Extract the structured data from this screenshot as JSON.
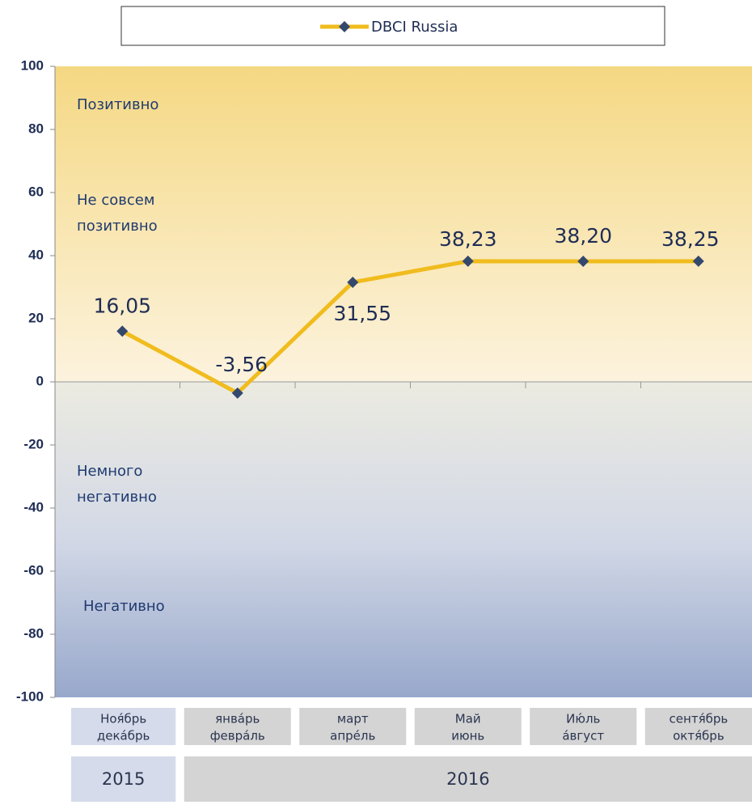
{
  "chart_data": {
    "type": "line",
    "series": [
      {
        "name": "DBCI Russia",
        "color": "#f0bc1e",
        "marker_color": "#34486e",
        "values": [
          16.05,
          -3.56,
          31.55,
          38.23,
          38.2,
          38.25
        ],
        "value_labels": [
          "16,05",
          "-3,56",
          "31,55",
          "38,23",
          "38,20",
          "38,25"
        ]
      }
    ],
    "categories": [
      [
        "Ноя́брь",
        "дека́брь"
      ],
      [
        "янва́рь",
        "февра́ль"
      ],
      [
        "март",
        "апре́ль"
      ],
      [
        "Май",
        "июнь"
      ],
      [
        "Ию́ль",
        "а́вгуст"
      ],
      [
        "сентя́брь",
        "октя́брь"
      ]
    ],
    "years": [
      {
        "label": "2015",
        "span": 1
      },
      {
        "label": "2016",
        "span": 5
      }
    ],
    "annotations": [
      [
        "Позитивно"
      ],
      [
        "Не совсем",
        "позитивно"
      ],
      [
        "Немного",
        "негативно"
      ],
      [
        "Негативно"
      ]
    ],
    "ylim": [
      -100,
      100
    ],
    "yticks": [
      -100,
      -80,
      -60,
      -40,
      -20,
      0,
      20,
      40,
      60,
      80,
      100
    ],
    "legend": "top"
  }
}
